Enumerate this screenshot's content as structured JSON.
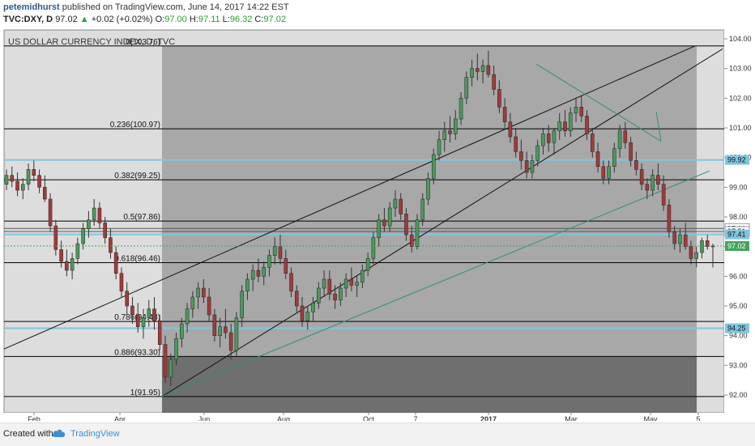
{
  "header": {
    "author": "petemidhurst",
    "published": "published on TradingView.com, June 14, 2017 14:22 EST",
    "symbol_line": {
      "symbol": "TVC:DXY, D",
      "last": "97.02",
      "change": "+0.02 (+0.02%)",
      "o_label": "O:",
      "o": "97.00",
      "h_label": "H:",
      "h": "97.11",
      "l_label": "L:",
      "l": "96.32",
      "c_label": "C:",
      "c": "97.02"
    }
  },
  "footer": {
    "created_with": "Created with",
    "brand": "TradingView"
  },
  "colors": {
    "up": "#4a9a5c",
    "down": "#a33a3a",
    "fib": "#000000",
    "teal": "#2f8f7a",
    "cyan_band": "#7fc6e0",
    "price_tag_green": "#41a458"
  },
  "chart_data": {
    "type": "candlestick",
    "title": "US DOLLAR CURRENCY INDEX, D, TVC",
    "x_tick_labels": [
      "Feb",
      "Apr",
      "Jun",
      "Aug",
      "Oct",
      "7",
      "2017",
      "Mar",
      "May",
      "5"
    ],
    "y_ticks": [
      92.0,
      93.0,
      94.0,
      95.0,
      96.0,
      97.0,
      98.0,
      99.0,
      100.0,
      101.0,
      102.0,
      103.0,
      104.0
    ],
    "y_range": [
      91.4,
      104.3
    ],
    "fib_levels": [
      {
        "label": "0(103.76)",
        "value": 103.76
      },
      {
        "label": "0.236(100.97)",
        "value": 100.97
      },
      {
        "label": "0.382(99.25)",
        "value": 99.25
      },
      {
        "label": "0.5(97.86)",
        "value": 97.86
      },
      {
        "label": "0.618(96.46)",
        "value": 96.46
      },
      {
        "label": "0.786(94.48)",
        "value": 94.48
      },
      {
        "label": "0.886(93.30)",
        "value": 93.3
      },
      {
        "label": "1(91.95)",
        "value": 91.95
      }
    ],
    "horizontal_levels": [
      {
        "label": "99.92",
        "value": 99.92,
        "style": "cyan"
      },
      {
        "label": "97.61",
        "value": 97.61,
        "style": "plain"
      },
      {
        "label": "97.51",
        "value": 97.51,
        "style": "plain"
      },
      {
        "label": "97.41",
        "value": 97.41,
        "style": "cyan"
      },
      {
        "label": "94.25",
        "value": 94.25,
        "style": "cyan"
      }
    ],
    "last_price": {
      "label": "97.02",
      "value": 97.02
    },
    "candles": [
      [
        99.1,
        99.6,
        98.9,
        99.4
      ],
      [
        99.4,
        99.7,
        99.0,
        99.2
      ],
      [
        99.2,
        99.5,
        98.7,
        98.9
      ],
      [
        98.9,
        99.3,
        98.6,
        99.1
      ],
      [
        99.1,
        99.8,
        98.9,
        99.6
      ],
      [
        99.6,
        99.9,
        99.2,
        99.4
      ],
      [
        99.4,
        99.6,
        98.8,
        99.0
      ],
      [
        99.0,
        99.4,
        98.5,
        98.6
      ],
      [
        98.6,
        98.8,
        97.5,
        97.7
      ],
      [
        97.7,
        97.9,
        96.7,
        96.9
      ],
      [
        96.9,
        97.2,
        96.3,
        96.5
      ],
      [
        96.5,
        96.9,
        96.0,
        96.2
      ],
      [
        96.2,
        96.8,
        95.9,
        96.6
      ],
      [
        96.6,
        97.3,
        96.4,
        97.1
      ],
      [
        97.1,
        97.8,
        96.9,
        97.6
      ],
      [
        97.6,
        98.2,
        97.3,
        97.9
      ],
      [
        97.9,
        98.6,
        97.7,
        98.3
      ],
      [
        98.3,
        98.5,
        97.6,
        97.8
      ],
      [
        97.8,
        98.0,
        97.1,
        97.3
      ],
      [
        97.3,
        97.6,
        96.6,
        96.8
      ],
      [
        96.8,
        97.0,
        95.9,
        96.1
      ],
      [
        96.1,
        96.3,
        95.3,
        95.5
      ],
      [
        95.5,
        95.8,
        94.7,
        95.0
      ],
      [
        95.0,
        95.3,
        94.4,
        94.7
      ],
      [
        94.7,
        95.1,
        94.1,
        94.3
      ],
      [
        94.3,
        94.9,
        93.9,
        94.6
      ],
      [
        94.6,
        95.2,
        94.3,
        94.9
      ],
      [
        94.9,
        95.3,
        94.2,
        94.5
      ],
      [
        94.5,
        94.7,
        93.5,
        93.7
      ],
      [
        93.7,
        94.0,
        92.4,
        92.6
      ],
      [
        92.6,
        93.4,
        92.3,
        93.2
      ],
      [
        93.2,
        94.1,
        93.0,
        93.9
      ],
      [
        93.9,
        94.6,
        93.6,
        94.4
      ],
      [
        94.4,
        95.1,
        94.1,
        94.9
      ],
      [
        94.9,
        95.5,
        94.6,
        95.3
      ],
      [
        95.3,
        95.8,
        94.9,
        95.6
      ],
      [
        95.6,
        95.9,
        95.1,
        95.3
      ],
      [
        95.3,
        95.6,
        94.5,
        94.7
      ],
      [
        94.7,
        94.9,
        93.8,
        94.0
      ],
      [
        94.0,
        94.6,
        93.6,
        94.3
      ],
      [
        94.3,
        94.9,
        93.9,
        94.1
      ],
      [
        94.1,
        94.4,
        93.2,
        93.5
      ],
      [
        93.5,
        94.8,
        93.3,
        94.6
      ],
      [
        94.6,
        95.7,
        94.3,
        95.5
      ],
      [
        95.5,
        96.1,
        95.2,
        95.9
      ],
      [
        95.9,
        96.4,
        95.5,
        96.2
      ],
      [
        96.2,
        96.6,
        95.8,
        96.0
      ],
      [
        96.0,
        96.5,
        95.7,
        96.3
      ],
      [
        96.3,
        96.9,
        96.0,
        96.7
      ],
      [
        96.7,
        97.3,
        96.4,
        97.0
      ],
      [
        97.0,
        97.4,
        96.4,
        96.6
      ],
      [
        96.6,
        96.9,
        95.9,
        96.1
      ],
      [
        96.1,
        96.3,
        95.3,
        95.5
      ],
      [
        95.5,
        95.7,
        94.8,
        95.0
      ],
      [
        95.0,
        95.3,
        94.3,
        94.5
      ],
      [
        94.5,
        95.0,
        94.2,
        94.8
      ],
      [
        94.8,
        95.3,
        94.5,
        95.1
      ],
      [
        95.1,
        95.8,
        94.9,
        95.6
      ],
      [
        95.6,
        96.2,
        95.3,
        95.9
      ],
      [
        95.9,
        96.2,
        95.2,
        95.4
      ],
      [
        95.4,
        95.7,
        94.9,
        95.2
      ],
      [
        95.2,
        95.8,
        95.0,
        95.6
      ],
      [
        95.6,
        96.1,
        95.3,
        95.9
      ],
      [
        95.9,
        96.3,
        95.5,
        95.7
      ],
      [
        95.7,
        96.0,
        95.3,
        95.8
      ],
      [
        95.8,
        96.4,
        95.6,
        96.2
      ],
      [
        96.2,
        96.8,
        96.0,
        96.6
      ],
      [
        96.6,
        97.5,
        96.4,
        97.3
      ],
      [
        97.3,
        98.1,
        97.0,
        97.9
      ],
      [
        97.9,
        98.3,
        97.5,
        97.7
      ],
      [
        97.7,
        98.5,
        97.5,
        98.3
      ],
      [
        98.3,
        98.9,
        98.0,
        98.6
      ],
      [
        98.6,
        98.8,
        97.9,
        98.1
      ],
      [
        98.1,
        98.3,
        97.2,
        97.4
      ],
      [
        97.4,
        97.7,
        96.8,
        97.0
      ],
      [
        97.0,
        98.1,
        96.9,
        97.9
      ],
      [
        97.9,
        98.8,
        97.7,
        98.6
      ],
      [
        98.6,
        99.5,
        98.4,
        99.3
      ],
      [
        99.3,
        100.3,
        99.1,
        100.1
      ],
      [
        100.1,
        100.9,
        99.9,
        100.6
      ],
      [
        100.6,
        101.2,
        100.2,
        100.9
      ],
      [
        100.9,
        101.4,
        100.5,
        100.8
      ],
      [
        100.8,
        101.6,
        100.6,
        101.3
      ],
      [
        101.3,
        102.2,
        101.1,
        102.0
      ],
      [
        102.0,
        102.9,
        101.8,
        102.7
      ],
      [
        102.7,
        103.3,
        102.4,
        103.0
      ],
      [
        103.0,
        103.5,
        102.6,
        102.9
      ],
      [
        102.9,
        103.3,
        102.5,
        103.1
      ],
      [
        103.1,
        103.6,
        102.7,
        102.8
      ],
      [
        102.8,
        103.1,
        102.1,
        102.3
      ],
      [
        102.3,
        102.6,
        101.5,
        101.7
      ],
      [
        101.7,
        102.0,
        101.0,
        101.2
      ],
      [
        101.2,
        101.5,
        100.5,
        100.7
      ],
      [
        100.7,
        101.0,
        100.0,
        100.2
      ],
      [
        100.2,
        100.6,
        99.6,
        99.9
      ],
      [
        99.9,
        100.2,
        99.3,
        99.5
      ],
      [
        99.5,
        100.1,
        99.3,
        99.9
      ],
      [
        99.9,
        100.6,
        99.7,
        100.4
      ],
      [
        100.4,
        101.0,
        100.1,
        100.8
      ],
      [
        100.8,
        101.1,
        100.2,
        100.5
      ],
      [
        100.5,
        101.0,
        100.1,
        100.9
      ],
      [
        100.9,
        101.5,
        100.6,
        101.2
      ],
      [
        101.2,
        101.6,
        100.7,
        100.9
      ],
      [
        100.9,
        101.7,
        100.7,
        101.5
      ],
      [
        101.5,
        102.0,
        101.2,
        101.7
      ],
      [
        101.7,
        102.1,
        101.2,
        101.4
      ],
      [
        101.4,
        101.6,
        100.6,
        100.8
      ],
      [
        100.8,
        101.0,
        100.0,
        100.2
      ],
      [
        100.2,
        100.5,
        99.5,
        99.7
      ],
      [
        99.7,
        99.9,
        99.1,
        99.3
      ],
      [
        99.3,
        99.9,
        99.1,
        99.7
      ],
      [
        99.7,
        100.5,
        99.5,
        100.3
      ],
      [
        100.3,
        101.1,
        100.0,
        100.9
      ],
      [
        100.9,
        101.2,
        100.3,
        100.5
      ],
      [
        100.5,
        100.7,
        99.7,
        99.9
      ],
      [
        99.9,
        100.2,
        99.4,
        99.6
      ],
      [
        99.6,
        99.8,
        98.9,
        99.1
      ],
      [
        99.1,
        99.3,
        98.6,
        98.9
      ],
      [
        98.9,
        99.6,
        98.7,
        99.4
      ],
      [
        99.4,
        99.8,
        98.9,
        99.1
      ],
      [
        99.1,
        99.4,
        98.2,
        98.4
      ],
      [
        98.4,
        98.6,
        97.3,
        97.5
      ],
      [
        97.5,
        97.7,
        96.9,
        97.1
      ],
      [
        97.1,
        97.6,
        96.8,
        97.4
      ],
      [
        97.4,
        97.8,
        96.9,
        97.0
      ],
      [
        97.0,
        97.2,
        96.4,
        96.6
      ],
      [
        96.6,
        97.0,
        96.3,
        96.8
      ],
      [
        96.8,
        97.3,
        96.6,
        97.2
      ],
      [
        97.2,
        97.4,
        96.9,
        97.0
      ],
      [
        97.0,
        97.1,
        96.3,
        97.02
      ]
    ]
  }
}
